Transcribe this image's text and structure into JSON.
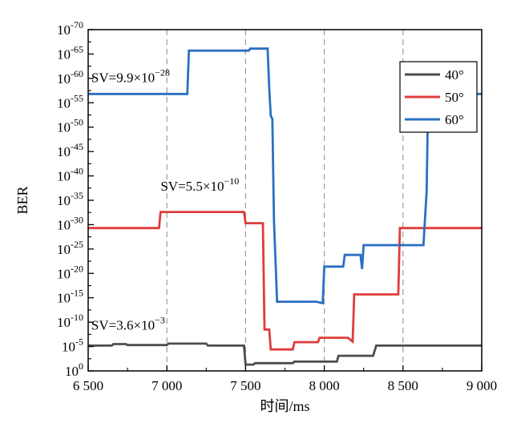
{
  "chart_data": {
    "type": "line",
    "title": "",
    "xlabel": "时间/ms",
    "ylabel": "BER",
    "xlim": [
      6500,
      9000
    ],
    "ylim_log10": [
      -70,
      0
    ],
    "y_scale": "log",
    "grid": "vertical dashed lines at x ticks",
    "legend_position": "top-right",
    "x_ticks": [
      6500,
      7000,
      7500,
      8000,
      8500,
      9000
    ],
    "x_tick_labels": [
      "6 500",
      "7 000",
      "7 500",
      "8 000",
      "8 500",
      "9 000"
    ],
    "y_ticks_log10": [
      0,
      -5,
      -10,
      -15,
      -20,
      -25,
      -30,
      -35,
      -40,
      -45,
      -50,
      -55,
      -60,
      -65,
      -70
    ],
    "y_tick_labels": [
      {
        "base": "10",
        "exp": "0"
      },
      {
        "base": "10",
        "exp": "-5"
      },
      {
        "base": "10",
        "exp": "-10"
      },
      {
        "base": "10",
        "exp": "-15"
      },
      {
        "base": "10",
        "exp": "-20"
      },
      {
        "base": "10",
        "exp": "-25"
      },
      {
        "base": "10",
        "exp": "-30"
      },
      {
        "base": "10",
        "exp": "-35"
      },
      {
        "base": "10",
        "exp": "-40"
      },
      {
        "base": "10",
        "exp": "-45"
      },
      {
        "base": "10",
        "exp": "-50"
      },
      {
        "base": "10",
        "exp": "-55"
      },
      {
        "base": "10",
        "exp": "-60"
      },
      {
        "base": "10",
        "exp": "-65"
      },
      {
        "base": "10",
        "exp": "-70"
      }
    ],
    "series": [
      {
        "name": "40°",
        "color": "#4d4d4d",
        "points": [
          [
            6500,
            -5.2
          ],
          [
            6650,
            -5.2
          ],
          [
            6660,
            -5.5
          ],
          [
            6740,
            -5.5
          ],
          [
            6750,
            -5.3
          ],
          [
            7000,
            -5.3
          ],
          [
            7010,
            -5.6
          ],
          [
            7250,
            -5.6
          ],
          [
            7260,
            -5.2
          ],
          [
            7490,
            -5.2
          ],
          [
            7500,
            -1.3
          ],
          [
            7550,
            -1.3
          ],
          [
            7560,
            -1.6
          ],
          [
            7800,
            -1.6
          ],
          [
            7810,
            -1.9
          ],
          [
            8080,
            -1.9
          ],
          [
            8090,
            -3.1
          ],
          [
            8310,
            -3.1
          ],
          [
            8330,
            -5.2
          ],
          [
            9000,
            -5.2
          ]
        ]
      },
      {
        "name": "50°",
        "color": "#e03c3c",
        "points": [
          [
            6500,
            -29.3
          ],
          [
            6950,
            -29.3
          ],
          [
            6960,
            -32.6
          ],
          [
            7490,
            -32.6
          ],
          [
            7500,
            -30.3
          ],
          [
            7610,
            -30.3
          ],
          [
            7620,
            -8.5
          ],
          [
            7650,
            -8.5
          ],
          [
            7660,
            -4.4
          ],
          [
            7800,
            -4.4
          ],
          [
            7810,
            -5.9
          ],
          [
            7960,
            -5.9
          ],
          [
            7970,
            -6.8
          ],
          [
            8150,
            -6.8
          ],
          [
            8180,
            -6.0
          ],
          [
            8190,
            -15.7
          ],
          [
            8470,
            -15.7
          ],
          [
            8480,
            -29.3
          ],
          [
            9000,
            -29.3
          ]
        ]
      },
      {
        "name": "60°",
        "color": "#2b6fc2",
        "points": [
          [
            6500,
            -56.8
          ],
          [
            7130,
            -56.8
          ],
          [
            7140,
            -65.7
          ],
          [
            7520,
            -65.7
          ],
          [
            7530,
            -66.1
          ],
          [
            7640,
            -66.1
          ],
          [
            7650,
            -57.9
          ],
          [
            7660,
            -52.3
          ],
          [
            7670,
            -51.7
          ],
          [
            7680,
            -30.9
          ],
          [
            7700,
            -14.2
          ],
          [
            7950,
            -14.2
          ],
          [
            7990,
            -13.9
          ],
          [
            8000,
            -21.4
          ],
          [
            8120,
            -21.4
          ],
          [
            8130,
            -23.8
          ],
          [
            8230,
            -23.8
          ],
          [
            8240,
            -20.9
          ],
          [
            8250,
            -25.8
          ],
          [
            8630,
            -25.8
          ],
          [
            8650,
            -36.9
          ],
          [
            8660,
            -56.8
          ],
          [
            9000,
            -56.8
          ]
        ]
      }
    ],
    "annotations": [
      {
        "text": "SV=3.6×10",
        "sup": "−3",
        "x": 6520,
        "y_log10": -8.5
      },
      {
        "text": "SV=5.5×10",
        "sup": "−10",
        "x": 6960,
        "y_log10": -37.0
      },
      {
        "text": "SV=9.9×10",
        "sup": "−28",
        "x": 6520,
        "y_log10": -59.2
      }
    ]
  }
}
